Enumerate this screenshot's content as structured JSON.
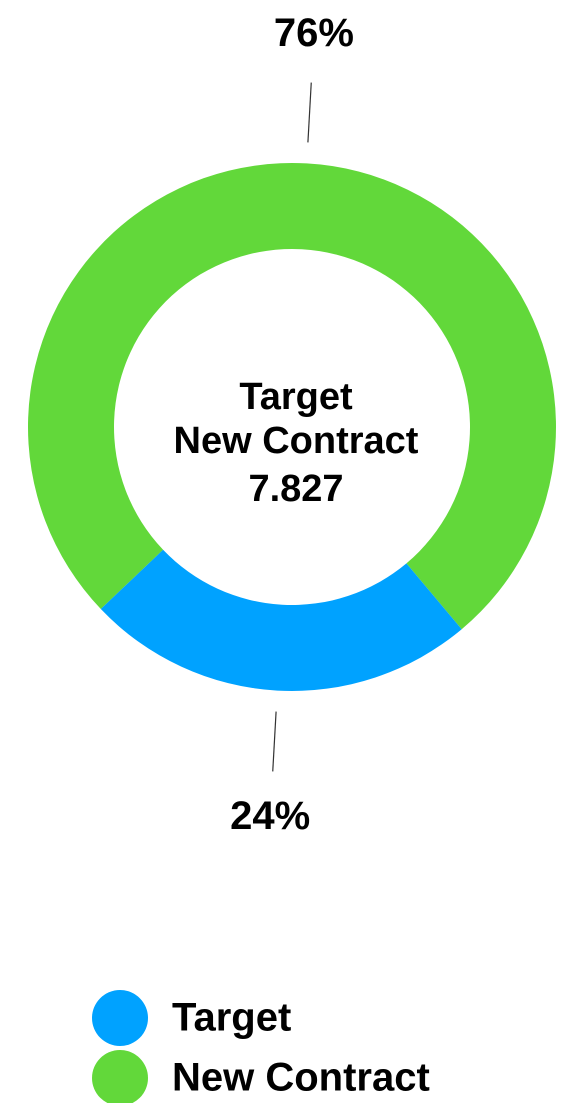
{
  "chart_data": {
    "type": "pie",
    "donut": true,
    "categories": [
      "Target",
      "New Contract"
    ],
    "values": [
      24,
      76
    ],
    "value_labels": [
      "24%",
      "76%"
    ],
    "colors": [
      "#00a2ff",
      "#62d83a"
    ],
    "center_label": [
      "Target",
      "New Contract"
    ],
    "center_value": 7.827,
    "legend": "bottom"
  }
}
